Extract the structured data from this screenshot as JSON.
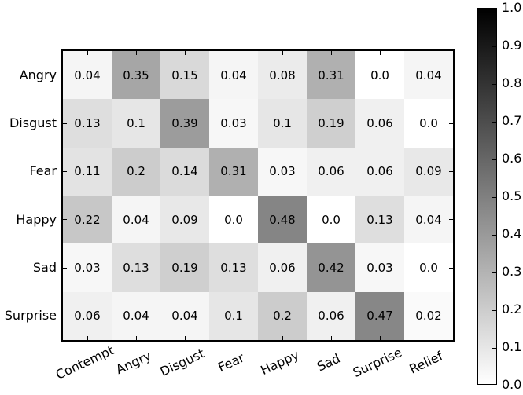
{
  "figure": {
    "background_color": "#ffffff",
    "axes_border_color": "#000000",
    "text_color": "#000000"
  },
  "chart_data": {
    "type": "heatmap",
    "title": "",
    "xlabel": "",
    "ylabel": "",
    "x_categories": [
      "Contempt",
      "Angry",
      "Disgust",
      "Fear",
      "Happy",
      "Sad",
      "Surprise",
      "Relief"
    ],
    "y_categories": [
      "Angry",
      "Disgust",
      "Fear",
      "Happy",
      "Sad",
      "Surprise"
    ],
    "matrix": [
      [
        "0.04",
        "0.35",
        "0.15",
        "0.04",
        "0.08",
        "0.31",
        "0.0",
        "0.04"
      ],
      [
        "0.13",
        "0.1",
        "0.39",
        "0.03",
        "0.1",
        "0.19",
        "0.06",
        "0.0"
      ],
      [
        "0.11",
        "0.2",
        "0.14",
        "0.31",
        "0.03",
        "0.06",
        "0.06",
        "0.09"
      ],
      [
        "0.22",
        "0.04",
        "0.09",
        "0.0",
        "0.48",
        "0.0",
        "0.13",
        "0.04"
      ],
      [
        "0.03",
        "0.13",
        "0.19",
        "0.13",
        "0.06",
        "0.42",
        "0.03",
        "0.0"
      ],
      [
        "0.06",
        "0.04",
        "0.04",
        "0.1",
        "0.2",
        "0.06",
        "0.47",
        "0.02"
      ]
    ],
    "colormap": "linear white-to-black (grayscale, higher = darker)",
    "vmin": 0.0,
    "vmax": 1.0,
    "colorbar": {
      "position": "right",
      "tick_labels": [
        "1.0",
        "0.9",
        "0.8",
        "0.7",
        "0.6",
        "0.5",
        "0.4",
        "0.3",
        "0.2",
        "0.1",
        "0.0"
      ],
      "tick_values": [
        1.0,
        0.9,
        0.8,
        0.7,
        0.6,
        0.5,
        0.4,
        0.3,
        0.2,
        0.1,
        0.0
      ]
    },
    "x_tick_rotation_deg": 25,
    "ticks_direction": "in",
    "grid": false
  }
}
